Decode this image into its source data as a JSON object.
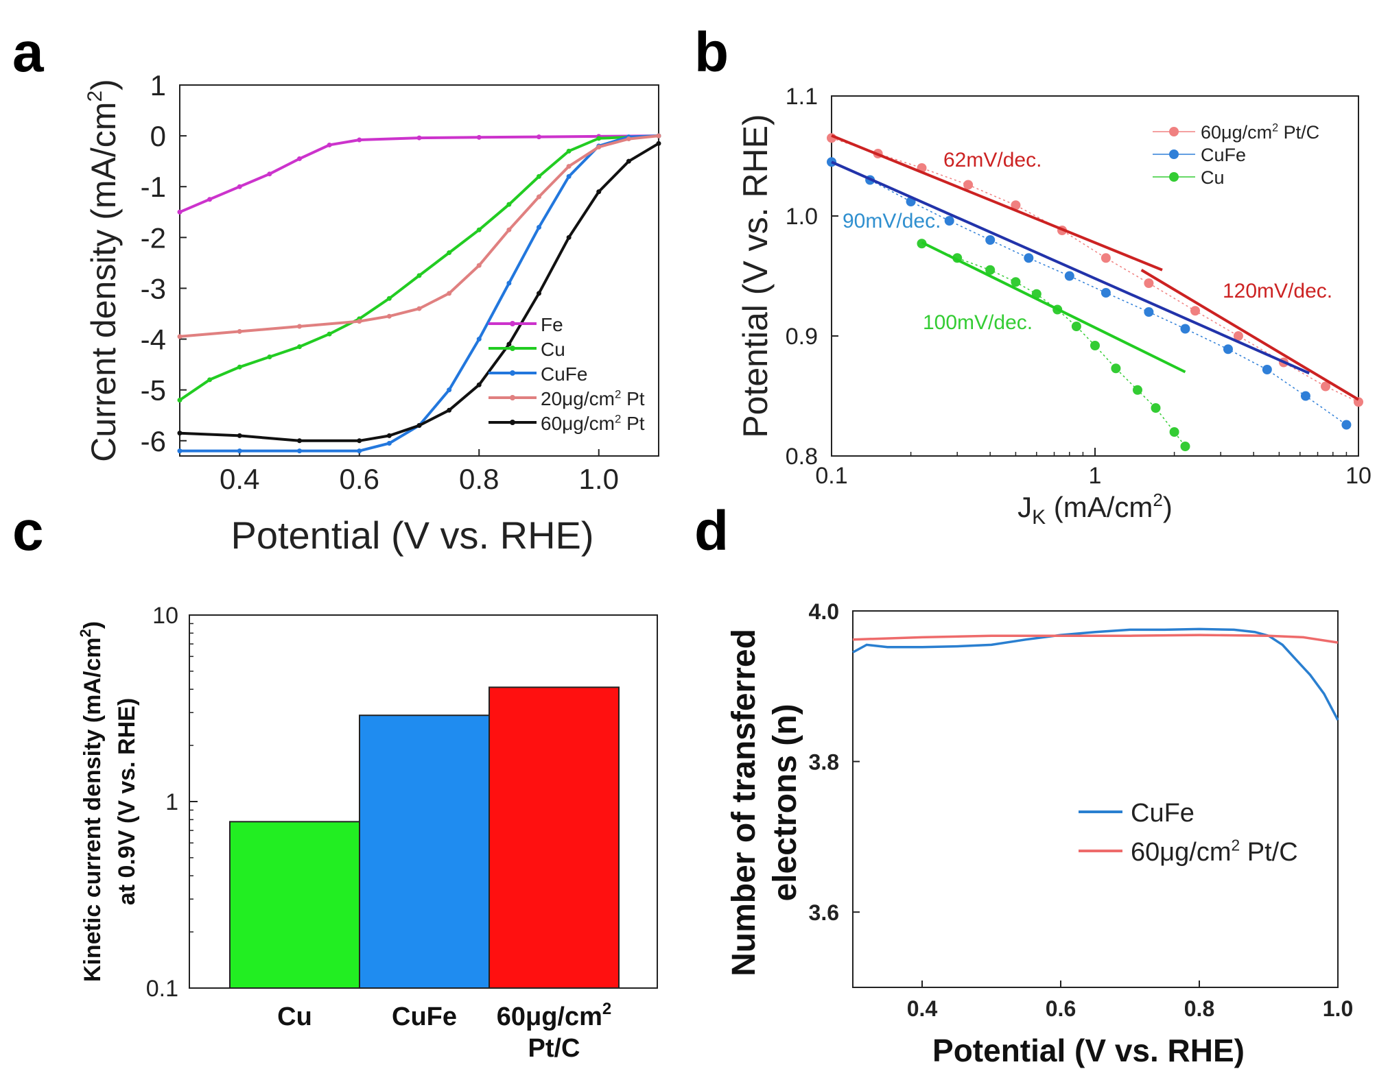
{
  "panel_labels": [
    "a",
    "b",
    "c",
    "d"
  ],
  "chart_data": [
    {
      "id": "a",
      "type": "line",
      "xlabel": "Potential (V vs. RHE)",
      "ylabel_main": "Current density (mA/cm",
      "ylabel_sup": "2",
      "ylabel_tail": ")",
      "xlim": [
        0.3,
        1.1
      ],
      "ylim": [
        -6.3,
        1
      ],
      "xticks": [
        0.4,
        0.6,
        0.8,
        1.0
      ],
      "xtick_labels": [
        "0.4",
        "0.6",
        "0.8",
        "1.0"
      ],
      "yticks": [
        1,
        0,
        -1,
        -2,
        -3,
        -4,
        -5,
        -6
      ],
      "ytick_labels": [
        "1",
        "0",
        "-1",
        "-2",
        "-3",
        "-4",
        "-5",
        "-6"
      ],
      "legend": [
        {
          "text": "Fe",
          "sup": "",
          "tail": "",
          "color": "#cc33cc"
        },
        {
          "text": "Cu",
          "sup": "",
          "tail": "",
          "color": "#22cc22"
        },
        {
          "text": "CuFe",
          "sup": "",
          "tail": "",
          "color": "#2277dd"
        },
        {
          "text": "20μg/cm",
          "sup": "2",
          "tail": " Pt",
          "color": "#e08080"
        },
        {
          "text": "60μg/cm",
          "sup": "2",
          "tail": " Pt",
          "color": "#111111"
        }
      ],
      "series": [
        {
          "name": "Fe",
          "color": "#cc33cc",
          "x": [
            0.3,
            0.35,
            0.4,
            0.45,
            0.5,
            0.55,
            0.6,
            0.7,
            0.8,
            0.9,
            1.0,
            1.1
          ],
          "y": [
            -1.5,
            -1.25,
            -1.0,
            -0.75,
            -0.45,
            -0.18,
            -0.08,
            -0.04,
            -0.03,
            -0.02,
            -0.01,
            0.0
          ]
        },
        {
          "name": "Cu",
          "color": "#22cc22",
          "x": [
            0.3,
            0.35,
            0.4,
            0.45,
            0.5,
            0.55,
            0.6,
            0.65,
            0.7,
            0.75,
            0.8,
            0.85,
            0.9,
            0.95,
            1.0,
            1.1
          ],
          "y": [
            -5.2,
            -4.8,
            -4.55,
            -4.35,
            -4.15,
            -3.9,
            -3.6,
            -3.2,
            -2.75,
            -2.3,
            -1.85,
            -1.35,
            -0.8,
            -0.3,
            -0.05,
            0.0
          ]
        },
        {
          "name": "CuFe",
          "color": "#2277dd",
          "x": [
            0.3,
            0.4,
            0.5,
            0.6,
            0.65,
            0.7,
            0.75,
            0.8,
            0.85,
            0.9,
            0.95,
            1.0,
            1.05,
            1.1
          ],
          "y": [
            -6.2,
            -6.2,
            -6.2,
            -6.2,
            -6.05,
            -5.7,
            -5.0,
            -4.0,
            -2.9,
            -1.8,
            -0.8,
            -0.2,
            -0.02,
            0.0
          ]
        },
        {
          "name": "20μg/cm2 Pt",
          "color": "#e08080",
          "x": [
            0.3,
            0.4,
            0.5,
            0.6,
            0.65,
            0.7,
            0.75,
            0.8,
            0.85,
            0.9,
            0.95,
            1.0,
            1.05,
            1.1
          ],
          "y": [
            -3.95,
            -3.85,
            -3.75,
            -3.65,
            -3.55,
            -3.4,
            -3.1,
            -2.55,
            -1.85,
            -1.2,
            -0.6,
            -0.22,
            -0.06,
            0.0
          ]
        },
        {
          "name": "60μg/cm2 Pt",
          "color": "#111111",
          "x": [
            0.3,
            0.4,
            0.5,
            0.6,
            0.65,
            0.7,
            0.75,
            0.8,
            0.85,
            0.9,
            0.95,
            1.0,
            1.05,
            1.1
          ],
          "y": [
            -5.85,
            -5.9,
            -6.0,
            -6.0,
            -5.9,
            -5.7,
            -5.4,
            -4.9,
            -4.1,
            -3.1,
            -2.0,
            -1.1,
            -0.5,
            -0.15
          ]
        }
      ]
    },
    {
      "id": "b",
      "type": "scatter",
      "xscale": "log",
      "xlabel_main": "J",
      "xlabel_sub": "K",
      "xlabel_tail": " (mA/cm",
      "xlabel_sup": "2",
      "xlabel_end": ")",
      "ylabel": "Potential (V vs. RHE)",
      "xlim": [
        0.1,
        10
      ],
      "ylim": [
        0.8,
        1.1
      ],
      "xticks": [
        0.1,
        1,
        10
      ],
      "xtick_labels": [
        "0.1",
        "1",
        "10"
      ],
      "yticks": [
        0.8,
        0.9,
        1.0,
        1.1
      ],
      "ytick_labels": [
        "0.8",
        "0.9",
        "1.0",
        "1.1"
      ],
      "legend": [
        {
          "text": "60μg/cm",
          "sup": "2",
          "tail": " Pt/C",
          "color": "#f08080"
        },
        {
          "text": "CuFe",
          "sup": "",
          "tail": "",
          "color": "#2f7fd8"
        },
        {
          "text": "Cu",
          "sup": "",
          "tail": "",
          "color": "#33cc33"
        }
      ],
      "series": [
        {
          "name": "60μg/cm2 Pt/C",
          "color": "#f08080",
          "x": [
            0.1,
            0.15,
            0.22,
            0.33,
            0.5,
            0.75,
            1.1,
            1.6,
            2.4,
            3.5,
            5.2,
            7.5,
            10
          ],
          "y": [
            1.065,
            1.052,
            1.04,
            1.026,
            1.009,
            0.988,
            0.965,
            0.944,
            0.921,
            0.9,
            0.878,
            0.858,
            0.845
          ]
        },
        {
          "name": "CuFe",
          "color": "#2f7fd8",
          "x": [
            0.1,
            0.14,
            0.2,
            0.28,
            0.4,
            0.56,
            0.8,
            1.1,
            1.6,
            2.2,
            3.2,
            4.5,
            6.3,
            9
          ],
          "y": [
            1.045,
            1.03,
            1.012,
            0.996,
            0.98,
            0.965,
            0.95,
            0.936,
            0.92,
            0.906,
            0.889,
            0.872,
            0.85,
            0.826
          ]
        },
        {
          "name": "Cu",
          "color": "#33cc33",
          "x": [
            0.22,
            0.3,
            0.4,
            0.5,
            0.6,
            0.72,
            0.85,
            1.0,
            1.2,
            1.45,
            1.7,
            2.0,
            2.2
          ],
          "y": [
            0.977,
            0.965,
            0.955,
            0.945,
            0.935,
            0.922,
            0.908,
            0.892,
            0.873,
            0.855,
            0.84,
            0.82,
            0.808
          ]
        }
      ],
      "fits": [
        {
          "label": "62mV/dec.",
          "color": "#cc2222",
          "x": [
            0.1,
            1.8
          ],
          "y": [
            1.067,
            0.955
          ]
        },
        {
          "label": "120mV/dec.",
          "color": "#cc2222",
          "x": [
            1.5,
            10
          ],
          "y": [
            0.955,
            0.847
          ]
        },
        {
          "label": "90mV/dec.",
          "color": "#2233aa",
          "x": [
            0.1,
            6.5
          ],
          "y": [
            1.045,
            0.869
          ]
        },
        {
          "label": "100mV/dec.",
          "color": "#22cc22",
          "x": [
            0.22,
            2.2
          ],
          "y": [
            0.978,
            0.87
          ]
        }
      ],
      "fit_label_colors": [
        "#cc2222",
        "#cc2222",
        "#2f8fcf",
        "#33cc33"
      ]
    },
    {
      "id": "c",
      "type": "bar",
      "yscale": "log",
      "ylabel_line1_main": "Kinetic current density (mA/cm",
      "ylabel_line1_sup": "2",
      "ylabel_line1_tail": ")",
      "ylabel_line2": "at 0.9V (V vs. RHE)",
      "ylim": [
        0.1,
        10
      ],
      "yticks": [
        0.1,
        1,
        10
      ],
      "ytick_labels": [
        "0.1",
        "1",
        "10"
      ],
      "categories": [
        "Cu",
        "CuFe",
        "60μg/cm2 Pt/C"
      ],
      "category_labels": [
        {
          "line1": "Cu",
          "sup": "",
          "line2": ""
        },
        {
          "line1": "CuFe",
          "sup": "",
          "line2": ""
        },
        {
          "line1": "60μg/cm",
          "sup": "2",
          "line2": "Pt/C"
        }
      ],
      "values": [
        0.78,
        2.9,
        4.1
      ],
      "colors": [
        "#22ee22",
        "#1f8cf0",
        "#ff1010"
      ]
    },
    {
      "id": "d",
      "type": "line",
      "xlabel": "Potential (V vs. RHE)",
      "ylabel_line1": "Number of transferred",
      "ylabel_line2": "electrons (n)",
      "xlim": [
        0.3,
        1.0
      ],
      "ylim": [
        3.5,
        4.0
      ],
      "xticks": [
        0.4,
        0.6,
        0.8,
        1.0
      ],
      "xtick_labels": [
        "0.4",
        "0.6",
        "0.8",
        "1.0"
      ],
      "yticks": [
        3.6,
        3.8,
        4.0
      ],
      "ytick_labels": [
        "3.6",
        "3.8",
        "4.0"
      ],
      "legend": [
        {
          "text": "CuFe",
          "sup": "",
          "tail": "",
          "color": "#2a7fd0"
        },
        {
          "text": "60μg/cm",
          "sup": "2",
          "tail": " Pt/C",
          "color": "#ee6b6b"
        }
      ],
      "series": [
        {
          "name": "CuFe",
          "color": "#2a7fd0",
          "x": [
            0.3,
            0.32,
            0.35,
            0.4,
            0.45,
            0.5,
            0.55,
            0.6,
            0.65,
            0.7,
            0.75,
            0.8,
            0.85,
            0.88,
            0.9,
            0.92,
            0.94,
            0.96,
            0.98,
            1.0
          ],
          "y": [
            3.945,
            3.955,
            3.952,
            3.952,
            3.953,
            3.955,
            3.962,
            3.968,
            3.972,
            3.975,
            3.975,
            3.976,
            3.975,
            3.972,
            3.967,
            3.955,
            3.935,
            3.915,
            3.89,
            3.855
          ]
        },
        {
          "name": "60μg/cm2 Pt/C",
          "color": "#ee6b6b",
          "x": [
            0.3,
            0.4,
            0.5,
            0.6,
            0.7,
            0.8,
            0.9,
            0.95,
            1.0
          ],
          "y": [
            3.962,
            3.965,
            3.967,
            3.967,
            3.967,
            3.968,
            3.967,
            3.965,
            3.958
          ]
        }
      ]
    }
  ]
}
